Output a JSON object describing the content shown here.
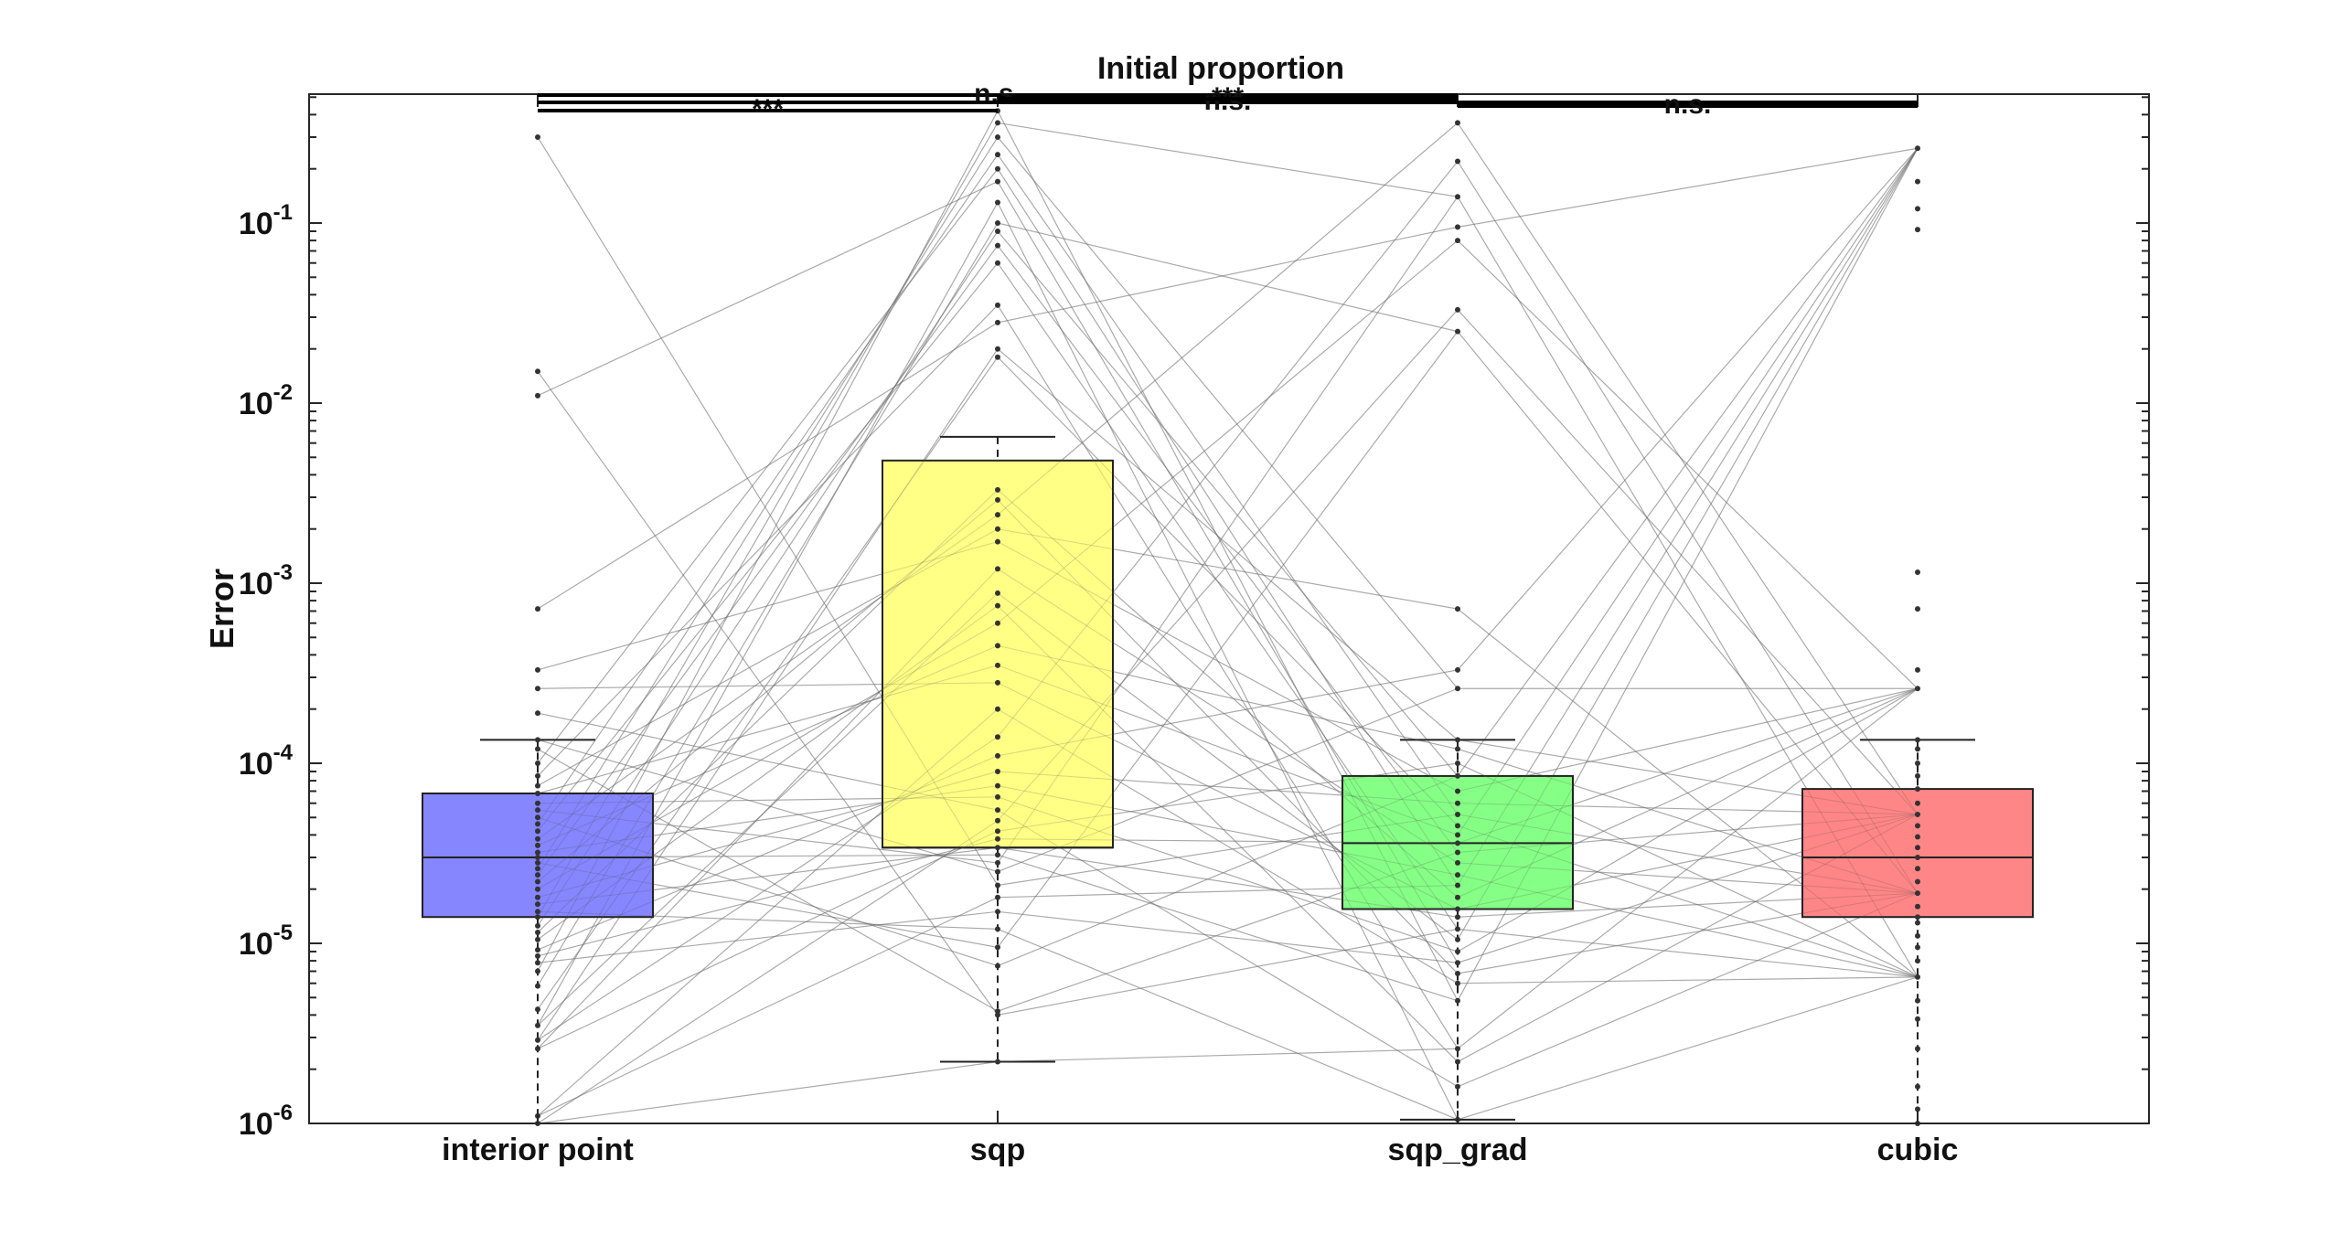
{
  "chart_data": {
    "type": "box",
    "title": "Initial proportion",
    "xlabel": "",
    "ylabel": "Error",
    "yscale": "log",
    "ylim": [
      1e-06,
      0.5
    ],
    "yticks": [
      {
        "value": 1e-06,
        "base": "10",
        "exp": "-6"
      },
      {
        "value": 1e-05,
        "base": "10",
        "exp": "-5"
      },
      {
        "value": 0.0001,
        "base": "10",
        "exp": "-4"
      },
      {
        "value": 0.001,
        "base": "10",
        "exp": "-3"
      },
      {
        "value": 0.01,
        "base": "10",
        "exp": "-2"
      },
      {
        "value": 0.1,
        "base": "10",
        "exp": "-1"
      }
    ],
    "categories": [
      "interior point",
      "sqp",
      "sqp_grad",
      "cubic"
    ],
    "boxes": [
      {
        "category": "interior point",
        "color": "#7f7fff",
        "q1": 1.4e-05,
        "median": 3e-05,
        "q3": 6.8e-05,
        "whisker_low": 1e-06,
        "whisker_high": 0.000135
      },
      {
        "category": "sqp",
        "color": "#ffff7f",
        "q1": 3.4e-05,
        "median": 3.4e-05,
        "q3": 0.0048,
        "whisker_low": 2.2e-06,
        "whisker_high": 0.0065
      },
      {
        "category": "sqp_grad",
        "color": "#7fff7f",
        "q1": 1.55e-05,
        "median": 3.6e-05,
        "q3": 8.5e-05,
        "whisker_low": 1.05e-06,
        "whisker_high": 0.000135
      },
      {
        "category": "cubic",
        "color": "#ff7f7f",
        "q1": 1.4e-05,
        "median": 3e-05,
        "q3": 7.2e-05,
        "whisker_low": 1e-06,
        "whisker_high": 0.000135
      }
    ],
    "points": {
      "interior point": [
        1e-06,
        1.1e-06,
        2.6e-06,
        2.9e-06,
        3.5e-06,
        4.3e-06,
        5.8e-06,
        7e-06,
        7.8e-06,
        8.5e-06,
        9.2e-06,
        1.05e-05,
        1.15e-05,
        1.25e-05,
        1.4e-05,
        1.5e-05,
        1.65e-05,
        1.8e-05,
        2e-05,
        2.2e-05,
        2.4e-05,
        2.6e-05,
        2.8e-05,
        3e-05,
        3.2e-05,
        3.5e-05,
        3.8e-05,
        4.2e-05,
        4.6e-05,
        5e-05,
        5.5e-05,
        6e-05,
        6.8e-05,
        7.5e-05,
        8.5e-05,
        0.0001,
        0.00012,
        0.000135,
        0.00019,
        0.00026,
        0.00033,
        0.00072,
        0.011,
        0.015,
        0.3
      ],
      "sqp": [
        2.2e-06,
        4e-06,
        4.2e-06,
        7.5e-06,
        9.5e-06,
        1.2e-05,
        1.5e-05,
        1.8e-05,
        2.1e-05,
        2.5e-05,
        2.8e-05,
        3.1e-05,
        3.4e-05,
        3.8e-05,
        4.2e-05,
        4.8e-05,
        5.5e-05,
        6.5e-05,
        7.5e-05,
        9e-05,
        0.00011,
        0.00014,
        0.0002,
        0.00028,
        0.00035,
        0.00045,
        0.0006,
        0.00075,
        0.00088,
        0.0012,
        0.0017,
        0.002,
        0.0024,
        0.0029,
        0.0033,
        0.018,
        0.02,
        0.028,
        0.035,
        0.06,
        0.075,
        0.09,
        0.1,
        0.13,
        0.17,
        0.2,
        0.24,
        0.3,
        0.36,
        0.42
      ],
      "sqp_grad": [
        1.05e-06,
        1.6e-06,
        2.2e-06,
        2.6e-06,
        4.8e-06,
        6e-06,
        6.8e-06,
        7.8e-06,
        9e-06,
        1.05e-05,
        1.2e-05,
        1.4e-05,
        1.55e-05,
        1.8e-05,
        2.1e-05,
        2.4e-05,
        2.8e-05,
        3.2e-05,
        3.6e-05,
        4e-05,
        4.5e-05,
        5.2e-05,
        6e-05,
        7e-05,
        8.5e-05,
        0.0001,
        0.00012,
        0.000135,
        0.00026,
        0.00033,
        0.00072,
        0.025,
        0.033,
        0.08,
        0.095,
        0.14,
        0.22,
        0.36
      ],
      "cubic": [
        1e-06,
        1.2e-06,
        1.6e-06,
        2.6e-06,
        3.8e-06,
        4.8e-06,
        6.5e-06,
        8e-06,
        9.5e-06,
        1.1e-05,
        1.3e-05,
        1.4e-05,
        1.6e-05,
        1.9e-05,
        2.2e-05,
        2.6e-05,
        3e-05,
        3.4e-05,
        3.9e-05,
        4.5e-05,
        5.2e-05,
        6e-05,
        7.2e-05,
        8.5e-05,
        0.0001,
        0.00012,
        0.000135,
        0.00026,
        0.00033,
        0.00072,
        0.00115,
        0.092,
        0.12,
        0.17,
        0.26
      ]
    },
    "significance": [
      {
        "from": "interior point",
        "to": "sqp",
        "label": "***"
      },
      {
        "from": "interior point",
        "to": "sqp_grad",
        "label": "n.s."
      },
      {
        "from": "interior point",
        "to": "cubic",
        "label": "n.s."
      },
      {
        "from": "sqp",
        "to": "sqp_grad",
        "label": "***"
      },
      {
        "from": "sqp_grad",
        "to": "cubic",
        "label": "n.s."
      }
    ],
    "grid": false,
    "legend": "none"
  }
}
